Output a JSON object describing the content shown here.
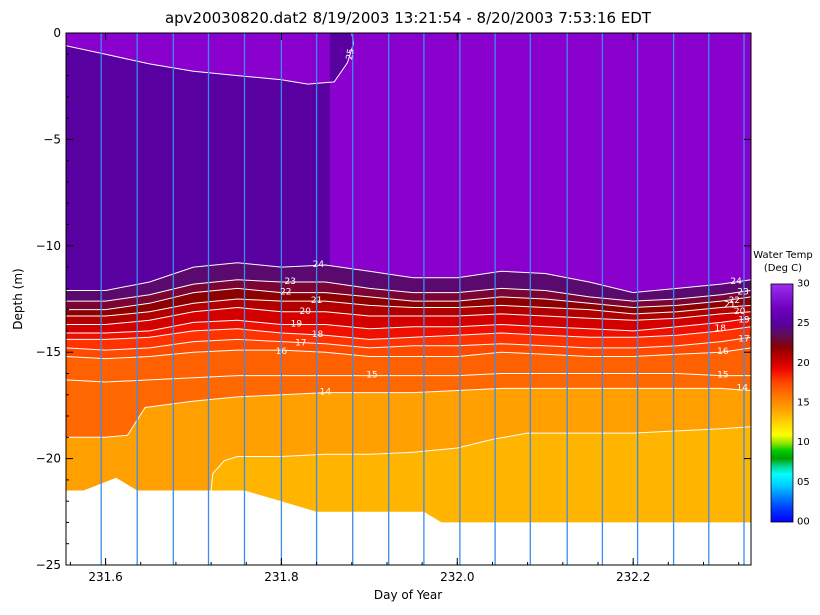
{
  "chart_data": {
    "type": "heatmap",
    "title": "apv20030820.dat2  8/19/2003 13:21:54 - 8/20/2003 7:53:16 EDT",
    "xlabel": "Day of Year",
    "ylabel": "Depth (m)",
    "xlim": [
      231.555,
      232.334
    ],
    "ylim": [
      -25,
      0
    ],
    "x_ticks": [
      {
        "value": 231.6,
        "label": "231.6"
      },
      {
        "value": 231.8,
        "label": "231.8"
      },
      {
        "value": 232.0,
        "label": "232.0"
      },
      {
        "value": 232.2,
        "label": "232.2"
      }
    ],
    "y_ticks": [
      {
        "value": 0,
        "label": "0"
      },
      {
        "value": -5,
        "label": "−5"
      },
      {
        "value": -10,
        "label": "−10"
      },
      {
        "value": -15,
        "label": "−15"
      },
      {
        "value": -20,
        "label": "−20"
      },
      {
        "value": -25,
        "label": "−25"
      }
    ],
    "profile_days": [
      231.595,
      231.636,
      231.677,
      231.717,
      231.758,
      231.8,
      231.84,
      231.881,
      231.922,
      231.962,
      232.003,
      232.043,
      232.083,
      232.125,
      232.165,
      232.205,
      232.246,
      232.286,
      232.326
    ],
    "bottom_depth": {
      "x": [
        231.555,
        231.575,
        231.612,
        231.636,
        231.758,
        231.8,
        231.84,
        231.881,
        231.922,
        231.962,
        231.982,
        232.334
      ],
      "y": [
        -21.5,
        -21.5,
        -20.9,
        -21.5,
        -21.5,
        -22.0,
        -22.5,
        -22.5,
        -22.5,
        -22.5,
        -23.0,
        -23.0
      ]
    },
    "contours": [
      {
        "level": 30,
        "x": [
          231.555,
          232.334
        ],
        "y": [
          0,
          0
        ]
      },
      {
        "level": 25,
        "x": [
          231.555,
          231.6,
          231.65,
          231.7,
          231.75,
          231.8,
          231.83,
          231.86,
          231.875,
          231.882,
          231.88,
          231.87,
          231.855
        ],
        "y": [
          -0.6,
          -1.0,
          -1.45,
          -1.8,
          -2.0,
          -2.2,
          -2.4,
          -2.3,
          -1.4,
          -0.5,
          0,
          0,
          0
        ]
      },
      {
        "level": 24,
        "x": [
          231.555,
          231.6,
          231.65,
          231.7,
          231.75,
          231.8,
          231.85,
          231.9,
          231.95,
          232.0,
          232.05,
          232.1,
          232.15,
          232.2,
          232.25,
          232.3,
          232.334
        ],
        "y": [
          -12.1,
          -12.1,
          -11.7,
          -11.0,
          -10.8,
          -11.0,
          -10.9,
          -11.2,
          -11.5,
          -11.5,
          -11.2,
          -11.3,
          -11.7,
          -12.2,
          -12.0,
          -11.8,
          -11.6
        ]
      },
      {
        "level": 23,
        "x": [
          231.555,
          231.6,
          231.65,
          231.7,
          231.75,
          231.8,
          231.85,
          231.9,
          231.95,
          232.0,
          232.05,
          232.1,
          232.15,
          232.2,
          232.25,
          232.3,
          232.334
        ],
        "y": [
          -12.6,
          -12.6,
          -12.3,
          -11.8,
          -11.6,
          -11.7,
          -11.7,
          -12.0,
          -12.2,
          -12.2,
          -12.0,
          -12.1,
          -12.4,
          -12.6,
          -12.5,
          -12.3,
          -12.1
        ]
      },
      {
        "level": 22,
        "x": [
          231.555,
          231.6,
          231.65,
          231.7,
          231.75,
          231.8,
          231.85,
          231.9,
          231.95,
          232.0,
          232.05,
          232.1,
          232.15,
          232.2,
          232.25,
          232.3,
          232.334
        ],
        "y": [
          -13.0,
          -13.0,
          -12.7,
          -12.2,
          -12.0,
          -12.2,
          -12.2,
          -12.4,
          -12.6,
          -12.6,
          -12.4,
          -12.5,
          -12.7,
          -12.9,
          -12.8,
          -12.6,
          -12.4
        ]
      },
      {
        "level": 21,
        "x": [
          231.555,
          231.6,
          231.65,
          231.7,
          231.75,
          231.8,
          231.85,
          231.9,
          231.95,
          232.0,
          232.05,
          232.1,
          232.15,
          232.2,
          232.25,
          232.3,
          232.334
        ],
        "y": [
          -13.3,
          -13.3,
          -13.1,
          -12.7,
          -12.5,
          -12.6,
          -12.6,
          -12.8,
          -12.9,
          -12.9,
          -12.8,
          -12.9,
          -13.0,
          -13.2,
          -13.1,
          -12.9,
          -12.8
        ]
      },
      {
        "level": 20,
        "x": [
          231.555,
          231.6,
          231.65,
          231.7,
          231.75,
          231.8,
          231.85,
          231.9,
          231.95,
          232.0,
          232.05,
          232.1,
          232.15,
          232.2,
          232.25,
          232.3,
          232.334
        ],
        "y": [
          -13.7,
          -13.7,
          -13.5,
          -13.1,
          -12.9,
          -13.1,
          -13.1,
          -13.3,
          -13.3,
          -13.3,
          -13.2,
          -13.3,
          -13.4,
          -13.5,
          -13.4,
          -13.2,
          -13.1
        ]
      },
      {
        "level": 19,
        "x": [
          231.555,
          231.6,
          231.65,
          231.7,
          231.75,
          231.8,
          231.85,
          231.9,
          231.95,
          232.0,
          232.05,
          232.1,
          232.15,
          232.2,
          232.25,
          232.3,
          232.334
        ],
        "y": [
          -14.1,
          -14.1,
          -14.0,
          -13.6,
          -13.5,
          -13.7,
          -13.7,
          -13.9,
          -13.8,
          -13.8,
          -13.7,
          -13.8,
          -13.9,
          -14.0,
          -13.8,
          -13.6,
          -13.4
        ]
      },
      {
        "level": 18,
        "x": [
          231.555,
          231.6,
          231.65,
          231.7,
          231.75,
          231.8,
          231.85,
          231.9,
          231.95,
          232.0,
          232.05,
          232.1,
          232.15,
          232.2,
          232.25,
          232.3,
          232.334
        ],
        "y": [
          -14.4,
          -14.4,
          -14.3,
          -14.0,
          -13.9,
          -14.1,
          -14.2,
          -14.4,
          -14.3,
          -14.2,
          -14.1,
          -14.2,
          -14.3,
          -14.3,
          -14.2,
          -14.0,
          -13.8
        ]
      },
      {
        "level": 17,
        "x": [
          231.555,
          231.6,
          231.65,
          231.7,
          231.75,
          231.8,
          231.85,
          231.9,
          231.95,
          232.0,
          232.05,
          232.1,
          232.15,
          232.2,
          232.25,
          232.3,
          232.334
        ],
        "y": [
          -14.8,
          -14.9,
          -14.8,
          -14.5,
          -14.4,
          -14.5,
          -14.6,
          -14.8,
          -14.7,
          -14.7,
          -14.6,
          -14.7,
          -14.8,
          -14.8,
          -14.7,
          -14.5,
          -14.3
        ]
      },
      {
        "level": 16,
        "x": [
          231.555,
          231.6,
          231.65,
          231.7,
          231.75,
          231.8,
          231.85,
          231.9,
          231.95,
          232.0,
          232.05,
          232.1,
          232.15,
          232.2,
          232.25,
          232.3,
          232.334
        ],
        "y": [
          -15.2,
          -15.3,
          -15.2,
          -15.0,
          -14.9,
          -14.9,
          -15.0,
          -15.2,
          -15.2,
          -15.2,
          -15.0,
          -15.1,
          -15.2,
          -15.2,
          -15.1,
          -15.0,
          -14.8
        ]
      },
      {
        "level": 15,
        "x": [
          231.555,
          231.6,
          231.65,
          231.7,
          231.75,
          231.8,
          231.85,
          231.9,
          231.95,
          232.0,
          232.05,
          232.1,
          232.15,
          232.2,
          232.25,
          232.3,
          232.334
        ],
        "y": [
          -16.3,
          -16.4,
          -16.3,
          -16.2,
          -16.1,
          -16.1,
          -16.1,
          -16.1,
          -16.1,
          -16.1,
          -16.0,
          -16.0,
          -16.0,
          -16.0,
          -16.0,
          -16.1,
          -16.1
        ]
      },
      {
        "level": 14,
        "x": [
          231.555,
          231.6,
          231.625,
          231.645,
          231.7,
          231.75,
          231.8,
          231.85,
          231.9,
          231.95,
          232.0,
          232.05,
          232.1,
          232.15,
          232.2,
          232.25,
          232.3,
          232.334
        ],
        "y": [
          -19.0,
          -19.0,
          -18.9,
          -17.6,
          -17.3,
          -17.1,
          -17.0,
          -16.9,
          -16.9,
          -16.9,
          -16.8,
          -16.7,
          -16.7,
          -16.7,
          -16.7,
          -16.7,
          -16.7,
          -16.8
        ]
      },
      {
        "level": 13,
        "x": [
          231.72,
          231.722,
          231.735,
          231.75,
          231.8,
          231.85,
          231.9,
          231.95,
          232.0,
          232.04,
          232.08,
          232.1,
          232.15,
          232.2,
          232.25,
          232.3,
          232.334
        ],
        "y": [
          -21.5,
          -20.7,
          -20.1,
          -19.9,
          -19.9,
          -19.8,
          -19.8,
          -19.7,
          -19.5,
          -19.1,
          -18.8,
          -18.8,
          -18.8,
          -18.8,
          -18.7,
          -18.6,
          -18.5
        ]
      }
    ],
    "contour_labels": [
      {
        "value": "25",
        "x": 231.879,
        "y": -1.0,
        "angle": -80
      },
      {
        "value": "24",
        "x": 231.842,
        "y": -10.9,
        "angle": 0
      },
      {
        "value": "23",
        "x": 231.81,
        "y": -11.7,
        "angle": 0
      },
      {
        "value": "22",
        "x": 231.805,
        "y": -12.2,
        "angle": 0
      },
      {
        "value": "21",
        "x": 231.84,
        "y": -12.6,
        "angle": 0
      },
      {
        "value": "20",
        "x": 231.827,
        "y": -13.1,
        "angle": 0
      },
      {
        "value": "19",
        "x": 231.817,
        "y": -13.7,
        "angle": 0
      },
      {
        "value": "18",
        "x": 231.841,
        "y": -14.2,
        "angle": 0
      },
      {
        "value": "17",
        "x": 231.822,
        "y": -14.6,
        "angle": 0
      },
      {
        "value": "16",
        "x": 231.8,
        "y": -15.0,
        "angle": 0
      },
      {
        "value": "15",
        "x": 231.903,
        "y": -16.1,
        "angle": 0
      },
      {
        "value": "14",
        "x": 231.85,
        "y": -16.9,
        "angle": 0
      },
      {
        "value": "24",
        "x": 232.317,
        "y": -11.7,
        "angle": 0
      },
      {
        "value": "23",
        "x": 232.325,
        "y": -12.2,
        "angle": 0
      },
      {
        "value": "22",
        "x": 232.315,
        "y": -12.6,
        "angle": 0
      },
      {
        "value": "21",
        "x": 232.31,
        "y": -12.8,
        "angle": 0
      },
      {
        "value": "20",
        "x": 232.321,
        "y": -13.1,
        "angle": 0
      },
      {
        "value": "19",
        "x": 232.326,
        "y": -13.5,
        "angle": 0
      },
      {
        "value": "18",
        "x": 232.299,
        "y": -13.9,
        "angle": 0
      },
      {
        "value": "17",
        "x": 232.326,
        "y": -14.4,
        "angle": 0
      },
      {
        "value": "16",
        "x": 232.302,
        "y": -15.0,
        "angle": 0
      },
      {
        "value": "15",
        "x": 232.302,
        "y": -16.1,
        "angle": 0
      },
      {
        "value": "14",
        "x": 232.324,
        "y": -16.7,
        "angle": 0
      }
    ],
    "colorbar": {
      "title_line1": "Water Temp",
      "title_line2": "(Deg C)",
      "range": [
        0,
        30
      ],
      "tick_labels": [
        {
          "value": 30,
          "label": "30"
        },
        {
          "value": 25,
          "label": "25"
        },
        {
          "value": 20,
          "label": "20"
        },
        {
          "value": 15,
          "label": "15"
        },
        {
          "value": 10,
          "label": "10"
        },
        {
          "value": 5,
          "label": "05"
        },
        {
          "value": 0,
          "label": "00"
        }
      ],
      "stops": [
        {
          "value": 0,
          "color": "#0000ff"
        },
        {
          "value": 1.5,
          "color": "#0033ff"
        },
        {
          "value": 3,
          "color": "#0078ff"
        },
        {
          "value": 4.5,
          "color": "#00c8ff"
        },
        {
          "value": 6,
          "color": "#00ffff"
        },
        {
          "value": 7,
          "color": "#00d896"
        },
        {
          "value": 8,
          "color": "#00a000"
        },
        {
          "value": 9,
          "color": "#00cc00"
        },
        {
          "value": 10,
          "color": "#99e600"
        },
        {
          "value": 11,
          "color": "#ffff00"
        },
        {
          "value": 12.5,
          "color": "#ffd200"
        },
        {
          "value": 14,
          "color": "#ffa500"
        },
        {
          "value": 16,
          "color": "#ff7500"
        },
        {
          "value": 17.5,
          "color": "#ff4a00"
        },
        {
          "value": 19,
          "color": "#f01000"
        },
        {
          "value": 20,
          "color": "#d40000"
        },
        {
          "value": 21,
          "color": "#b20000"
        },
        {
          "value": 22,
          "color": "#8c0000"
        },
        {
          "value": 23,
          "color": "#6a0a3c"
        },
        {
          "value": 24,
          "color": "#5a0a6e"
        },
        {
          "value": 25,
          "color": "#5800a0"
        },
        {
          "value": 27,
          "color": "#7000c0"
        },
        {
          "value": 30,
          "color": "#9b30f0"
        }
      ]
    },
    "colors": {
      "contour_line": "#ffffff",
      "profile_line": "#3c8cf0",
      "axis": "#000000",
      "below_bottom": "#ffffff"
    }
  }
}
